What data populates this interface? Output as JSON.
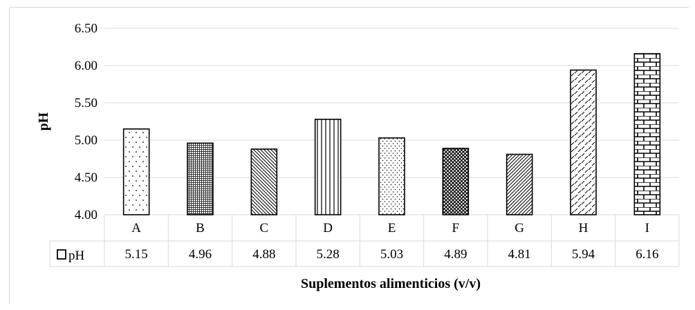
{
  "chart_data": {
    "type": "bar",
    "title": "",
    "xlabel": "Suplementos alimenticios (v/v)",
    "ylabel": "pH",
    "ylim": [
      4.0,
      6.5
    ],
    "yticks": [
      "4.00",
      "4.50",
      "5.00",
      "5.50",
      "6.00",
      "6.50"
    ],
    "categories": [
      "A",
      "B",
      "C",
      "D",
      "E",
      "F",
      "G",
      "H",
      "I"
    ],
    "series": [
      {
        "name": "pH",
        "values": [
          5.15,
          4.96,
          4.88,
          5.28,
          5.03,
          4.89,
          4.81,
          5.94,
          6.16
        ],
        "labels": [
          "5.15",
          "4.96",
          "4.88",
          "5.28",
          "5.03",
          "4.89",
          "4.81",
          "5.94",
          "6.16"
        ]
      }
    ],
    "patterns": [
      "dots-sparse",
      "dense-grid",
      "diagonal-down",
      "vertical-lines",
      "dots-fine",
      "crosshatch",
      "diagonal-up",
      "dashed-diagonal",
      "bricks"
    ],
    "grid": true,
    "data_table": true,
    "legend_placement": "data-table-row"
  }
}
